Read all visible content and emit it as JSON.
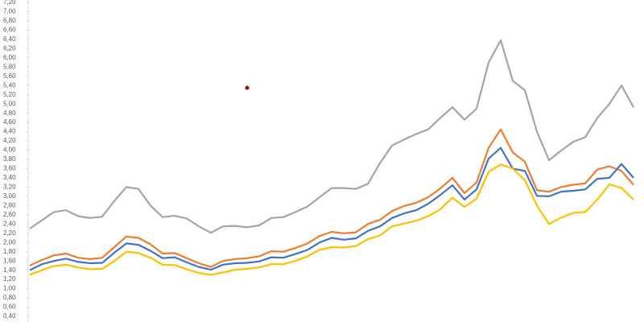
{
  "chart_data": {
    "type": "line",
    "categories": [
      null,
      null,
      null,
      null,
      null,
      null,
      null,
      null,
      null,
      null,
      null,
      null,
      null,
      null,
      null,
      null,
      null,
      null,
      null,
      null,
      null,
      null,
      null,
      null,
      null,
      null,
      null,
      null,
      null,
      null,
      null,
      null,
      null,
      null,
      null,
      null,
      null,
      null,
      null,
      null,
      null,
      null,
      null,
      null,
      null,
      null,
      null,
      null,
      null,
      null,
      null
    ],
    "ylim": [
      0.4,
      7.2
    ],
    "yticks": [
      {
        "value": 0.4,
        "label": "0,40"
      },
      {
        "value": 0.6,
        "label": "0,60"
      },
      {
        "value": 0.8,
        "label": "0,80"
      },
      {
        "value": 1.0,
        "label": "1,00"
      },
      {
        "value": 1.2,
        "label": "1,20"
      },
      {
        "value": 1.4,
        "label": "1,40"
      },
      {
        "value": 1.6,
        "label": "1,60"
      },
      {
        "value": 1.8,
        "label": "1,80"
      },
      {
        "value": 2.0,
        "label": "2,00"
      },
      {
        "value": 2.2,
        "label": "2,20"
      },
      {
        "value": 2.4,
        "label": "2,40"
      },
      {
        "value": 2.6,
        "label": "2,60"
      },
      {
        "value": 2.8,
        "label": "2,80"
      },
      {
        "value": 3.0,
        "label": "3,00"
      },
      {
        "value": 3.2,
        "label": "3,20"
      },
      {
        "value": 3.4,
        "label": "3,40"
      },
      {
        "value": 3.6,
        "label": "3,60"
      },
      {
        "value": 3.8,
        "label": "3,80"
      },
      {
        "value": 4.0,
        "label": "4,00"
      },
      {
        "value": 4.2,
        "label": "4,20"
      },
      {
        "value": 4.4,
        "label": "4,40"
      },
      {
        "value": 4.6,
        "label": "4,60"
      },
      {
        "value": 4.8,
        "label": "4,80"
      },
      {
        "value": 5.0,
        "label": "5,00"
      },
      {
        "value": 5.2,
        "label": "5,20"
      },
      {
        "value": 5.4,
        "label": "5,40"
      },
      {
        "value": 5.6,
        "label": "5,60"
      },
      {
        "value": 5.8,
        "label": "5,80"
      },
      {
        "value": 6.0,
        "label": "6,00"
      },
      {
        "value": 6.2,
        "label": "6,20"
      },
      {
        "value": 6.4,
        "label": "6,40"
      },
      {
        "value": 6.6,
        "label": "6,60"
      },
      {
        "value": 6.8,
        "label": "6,80"
      },
      {
        "value": 7.0,
        "label": "7,00"
      },
      {
        "value": 7.2,
        "label": "7,20"
      }
    ],
    "grid": false,
    "series": [
      {
        "color": "#a5a5a5",
        "values": [
          2.3,
          2.48,
          2.66,
          2.7,
          2.57,
          2.53,
          2.56,
          2.9,
          3.2,
          3.16,
          2.8,
          2.55,
          2.58,
          2.52,
          2.35,
          2.21,
          2.35,
          2.36,
          2.33,
          2.37,
          2.53,
          2.55,
          2.66,
          2.78,
          2.98,
          3.18,
          3.18,
          3.16,
          3.27,
          3.72,
          4.1,
          4.23,
          4.35,
          4.45,
          4.7,
          4.93,
          4.66,
          4.9,
          5.9,
          6.38,
          5.5,
          5.3,
          4.4,
          3.78,
          3.99,
          4.18,
          4.28,
          4.7,
          5.0,
          5.4,
          4.93
        ]
      },
      {
        "color": "#ed7d31",
        "values": [
          1.5,
          1.62,
          1.72,
          1.76,
          1.67,
          1.64,
          1.67,
          1.9,
          2.13,
          2.1,
          1.96,
          1.76,
          1.77,
          1.66,
          1.55,
          1.47,
          1.6,
          1.64,
          1.66,
          1.7,
          1.81,
          1.8,
          1.88,
          1.98,
          2.14,
          2.23,
          2.2,
          2.22,
          2.4,
          2.49,
          2.68,
          2.79,
          2.86,
          2.98,
          3.17,
          3.4,
          3.07,
          3.3,
          4.05,
          4.45,
          3.95,
          3.75,
          3.13,
          3.1,
          3.2,
          3.25,
          3.28,
          3.58,
          3.65,
          3.55,
          3.25
        ]
      },
      {
        "color": "#4472c4",
        "values": [
          1.4,
          1.53,
          1.6,
          1.65,
          1.58,
          1.55,
          1.56,
          1.78,
          1.98,
          1.95,
          1.82,
          1.66,
          1.68,
          1.57,
          1.47,
          1.41,
          1.52,
          1.55,
          1.56,
          1.59,
          1.68,
          1.67,
          1.75,
          1.84,
          2.0,
          2.1,
          2.06,
          2.09,
          2.25,
          2.35,
          2.53,
          2.63,
          2.7,
          2.84,
          3.03,
          3.24,
          2.93,
          3.15,
          3.82,
          4.05,
          3.6,
          3.55,
          3.01,
          3.0,
          3.1,
          3.12,
          3.15,
          3.38,
          3.4,
          3.7,
          3.4
        ]
      },
      {
        "color": "#ffc000",
        "values": [
          1.3,
          1.4,
          1.49,
          1.52,
          1.46,
          1.42,
          1.43,
          1.6,
          1.8,
          1.77,
          1.67,
          1.52,
          1.51,
          1.42,
          1.34,
          1.3,
          1.35,
          1.41,
          1.43,
          1.46,
          1.53,
          1.53,
          1.6,
          1.7,
          1.84,
          1.9,
          1.89,
          1.92,
          2.07,
          2.15,
          2.35,
          2.41,
          2.47,
          2.57,
          2.72,
          2.97,
          2.77,
          2.95,
          3.53,
          3.69,
          3.6,
          3.35,
          2.8,
          2.4,
          2.54,
          2.64,
          2.66,
          2.93,
          3.26,
          3.18,
          2.93
        ]
      },
      {
        "color": "#c00000",
        "values": [
          null,
          null,
          null,
          null,
          null,
          null,
          null,
          null,
          null,
          null,
          null,
          null,
          null,
          null,
          null,
          null,
          null,
          null,
          5.35,
          null,
          null,
          null,
          null,
          null,
          null,
          null,
          null,
          null,
          null,
          null,
          null,
          null,
          null,
          null,
          null,
          null,
          null,
          null,
          null,
          null,
          null,
          null,
          null,
          null,
          null,
          null,
          null,
          null,
          null,
          null,
          null
        ]
      }
    ]
  }
}
